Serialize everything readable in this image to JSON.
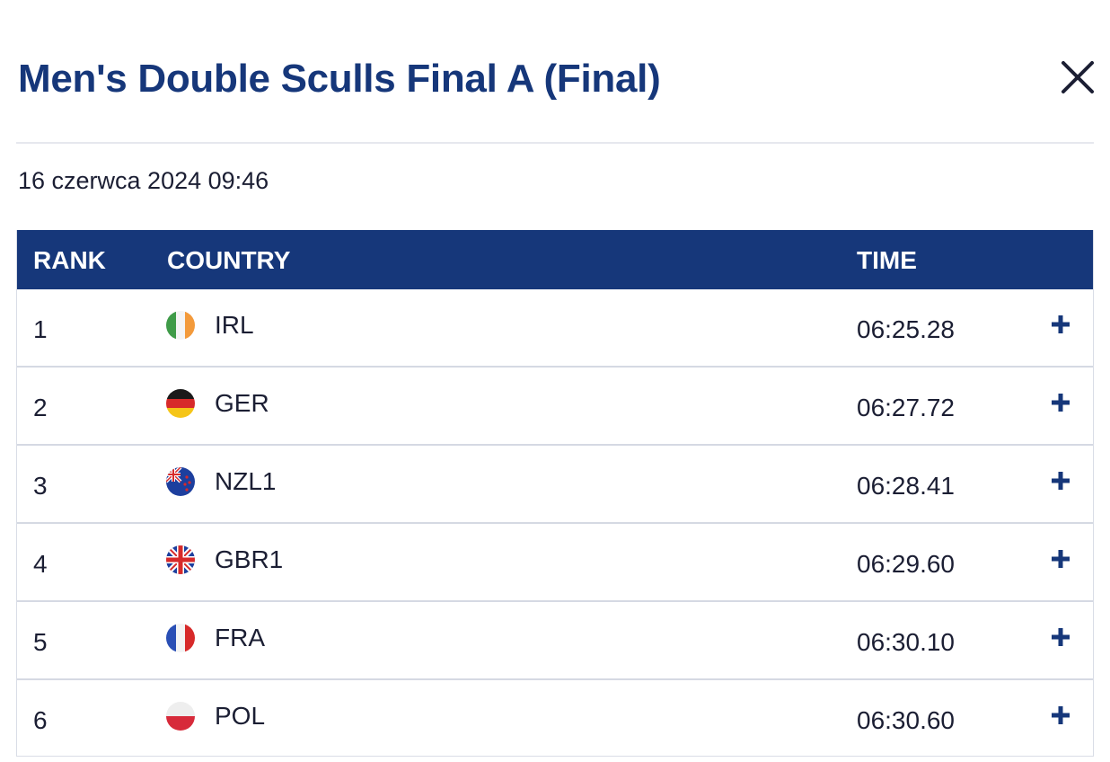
{
  "header": {
    "title": "Men's Double Sculls Final A (Final)",
    "close_icon": "close-icon"
  },
  "event": {
    "datetime": "16 czerwca 2024 09:46"
  },
  "table": {
    "columns": {
      "rank": "RANK",
      "country": "COUNTRY",
      "time": "TIME"
    },
    "rows": [
      {
        "rank": "1",
        "country": "IRL",
        "flag": "ireland-flag-icon",
        "time": "06:25.28"
      },
      {
        "rank": "2",
        "country": "GER",
        "flag": "germany-flag-icon",
        "time": "06:27.72"
      },
      {
        "rank": "3",
        "country": "NZL1",
        "flag": "new-zealand-flag-icon",
        "time": "06:28.41"
      },
      {
        "rank": "4",
        "country": "GBR1",
        "flag": "great-britain-flag-icon",
        "time": "06:29.60"
      },
      {
        "rank": "5",
        "country": "FRA",
        "flag": "france-flag-icon",
        "time": "06:30.10"
      },
      {
        "rank": "6",
        "country": "POL",
        "flag": "poland-flag-icon",
        "time": "06:30.60"
      }
    ],
    "expand_icon": "plus-icon"
  },
  "colors": {
    "primary": "#16377a",
    "text": "#1b1e33",
    "divider": "#e6e8ee",
    "row_border": "#d5d9e3"
  }
}
